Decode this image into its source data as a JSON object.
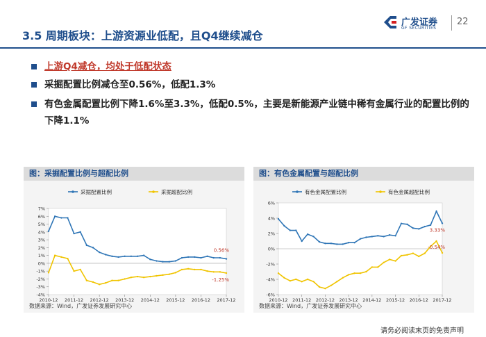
{
  "header": {
    "title": "3.5  周期板块：上游资源业低配，且Q4继续减仓",
    "logo_cn": "广发证券",
    "logo_en": "GF SECURITIES",
    "page_number": "22",
    "brand_color": "#1f4e8c"
  },
  "bullets": [
    "上游Q4减仓，均处于低配状态",
    "采掘配置比例减仓至0.56%，低配1.3%",
    "有色金属配置比例下降1.6%至3.3%，低配0.5%，主要是新能源产业链中稀有金属行业的配置比例的下降1.1%"
  ],
  "bullet_colors": {
    "highlight": "#c0392b",
    "normal": "#222222"
  },
  "panels": {
    "left": {
      "title": "图：采掘配置比例与超配比例",
      "source": "数据来源：Wind，广发证券发展研究中心"
    },
    "right": {
      "title": "图：有色金属配置与超配比例",
      "source": "数据来源：Wind，广发证券发展研究中心"
    }
  },
  "disclaimer": "请务必阅读末页的免责声明",
  "chart_data": [
    {
      "type": "line",
      "x": [
        "2010-12",
        "2011-03",
        "2011-06",
        "2011-09",
        "2011-12",
        "2012-03",
        "2012-06",
        "2012-09",
        "2012-12",
        "2013-03",
        "2013-06",
        "2013-09",
        "2013-12",
        "2014-03",
        "2014-06",
        "2014-09",
        "2014-12",
        "2015-03",
        "2015-06",
        "2015-09",
        "2015-12",
        "2016-03",
        "2016-06",
        "2016-09",
        "2016-12",
        "2017-03",
        "2017-06",
        "2017-09",
        "2017-12"
      ],
      "xticks": [
        "2010-12",
        "2011-12",
        "2012-12",
        "2013-12",
        "2014-12",
        "2015-12",
        "2016-12",
        "2017-12"
      ],
      "ylim": [
        -4,
        7
      ],
      "yticks": [
        -4,
        -3,
        -2,
        -1,
        0,
        1,
        2,
        3,
        4,
        5,
        6,
        7
      ],
      "ytick_labels": [
        "-4%",
        "-3%",
        "-2%",
        "-1%",
        "0%",
        "1%",
        "2%",
        "3%",
        "4%",
        "5%",
        "6%",
        "7%"
      ],
      "series": [
        {
          "name": "采掘配置比例",
          "color": "#2e75b6",
          "values": [
            4.1,
            6.0,
            5.8,
            5.8,
            3.8,
            4.0,
            2.3,
            2.0,
            1.4,
            1.1,
            0.9,
            0.8,
            0.9,
            0.9,
            0.9,
            1.0,
            0.5,
            0.3,
            0.2,
            0.2,
            0.3,
            0.7,
            0.8,
            0.8,
            0.7,
            0.9,
            0.7,
            0.7,
            0.56
          ]
        },
        {
          "name": "采掘超配比例",
          "color": "#f0c400",
          "values": [
            -1.2,
            1.0,
            0.8,
            0.6,
            -1.0,
            -0.8,
            -2.2,
            -2.4,
            -2.7,
            -2.5,
            -2.2,
            -2.2,
            -2.0,
            -1.8,
            -1.7,
            -1.8,
            -1.7,
            -1.6,
            -1.5,
            -1.4,
            -1.2,
            -0.8,
            -0.7,
            -0.8,
            -0.8,
            -1.0,
            -1.1,
            -1.1,
            -1.25
          ]
        }
      ],
      "annotations": [
        {
          "text": "0.56%",
          "color": "#c0392b"
        },
        {
          "text": "-1.25%",
          "color": "#c0392b"
        }
      ]
    },
    {
      "type": "line",
      "x": [
        "2010-12",
        "2011-03",
        "2011-06",
        "2011-09",
        "2011-12",
        "2012-03",
        "2012-06",
        "2012-09",
        "2012-12",
        "2013-03",
        "2013-06",
        "2013-09",
        "2013-12",
        "2014-03",
        "2014-06",
        "2014-09",
        "2014-12",
        "2015-03",
        "2015-06",
        "2015-09",
        "2015-12",
        "2016-03",
        "2016-06",
        "2016-09",
        "2016-12",
        "2017-03",
        "2017-06",
        "2017-09",
        "2017-12"
      ],
      "xticks": [
        "2010-12",
        "2011-12",
        "2012-12",
        "2013-12",
        "2014-12",
        "2015-12",
        "2016-12",
        "2017-12"
      ],
      "ylim": [
        -6,
        6
      ],
      "yticks": [
        -6,
        -4,
        -2,
        0,
        2,
        4,
        6
      ],
      "ytick_labels": [
        "-6%",
        "-4%",
        "-2%",
        "0%",
        "2%",
        "4%",
        "6%"
      ],
      "series": [
        {
          "name": "有色金属配置比例",
          "color": "#2e75b6",
          "values": [
            3.9,
            3.0,
            2.4,
            2.4,
            1.0,
            1.9,
            1.6,
            0.9,
            0.7,
            0.7,
            0.6,
            0.6,
            0.8,
            0.8,
            1.3,
            1.5,
            1.6,
            1.7,
            1.6,
            1.8,
            1.7,
            3.3,
            3.2,
            2.7,
            2.6,
            2.9,
            3.1,
            4.9,
            3.33
          ]
        },
        {
          "name": "有色金属超配比例",
          "color": "#f0c400",
          "values": [
            -3.2,
            -3.8,
            -4.2,
            -4.0,
            -4.3,
            -4.0,
            -4.3,
            -5.0,
            -5.2,
            -4.8,
            -4.3,
            -3.8,
            -3.4,
            -3.2,
            -3.2,
            -3.0,
            -2.4,
            -2.4,
            -1.8,
            -1.4,
            -1.6,
            -0.9,
            -0.8,
            -0.6,
            -1.0,
            -0.6,
            0.3,
            1.0,
            -0.54
          ]
        }
      ],
      "annotations": [
        {
          "text": "3.33%",
          "color": "#c0392b"
        },
        {
          "text": "-0.54%",
          "color": "#c0392b"
        }
      ]
    }
  ]
}
